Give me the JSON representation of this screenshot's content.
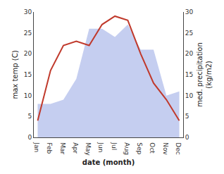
{
  "chart_data": {
    "type": "line",
    "xlabel": "date (month)",
    "ylabel": "max temp (C)",
    "y2label": "med. precipitation\n(kg/m2)",
    "categories": [
      "Jan",
      "Feb",
      "Mar",
      "Apr",
      "May",
      "Jun",
      "Jul",
      "Aug",
      "Sep",
      "Oct",
      "Nov",
      "Dec"
    ],
    "series": [
      {
        "type": "area",
        "axis": "y2",
        "color": "#c5cef0",
        "values": [
          8,
          8,
          9,
          14,
          26,
          26,
          24,
          27,
          21,
          21,
          10,
          11
        ]
      },
      {
        "type": "line",
        "color": "#c0392b",
        "values": [
          4,
          16,
          22,
          23,
          22,
          27,
          29,
          28,
          20,
          13,
          9,
          4
        ]
      }
    ],
    "ylim": [
      0,
      30
    ],
    "yticks": [
      0,
      5,
      10,
      15,
      20,
      25,
      30
    ],
    "y2lim": [
      0,
      30
    ],
    "y2ticks": [
      0,
      5,
      10,
      15,
      20,
      25,
      30
    ],
    "grid": false
  }
}
